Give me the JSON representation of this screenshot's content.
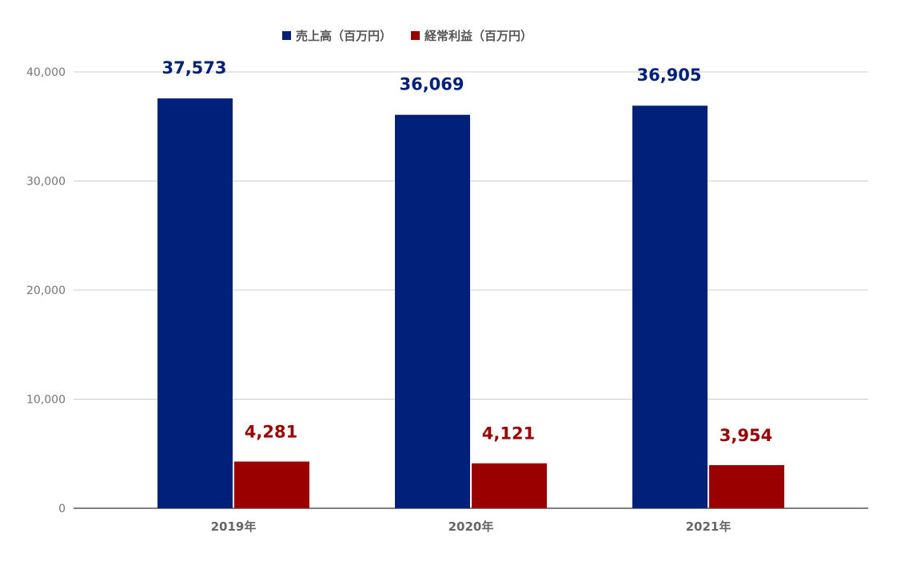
{
  "chart_data": {
    "type": "bar",
    "title": "",
    "xlabel": "",
    "ylabel": "",
    "categories": [
      "2019年",
      "2020年",
      "2021年"
    ],
    "series": [
      {
        "name": "売上高（百万円）",
        "values": [
          37573,
          36069,
          36905
        ],
        "labels": [
          "37,573",
          "36,069",
          "36,905"
        ],
        "color": "#00207a"
      },
      {
        "name": "経常利益（百万円）",
        "values": [
          4281,
          4121,
          3954
        ],
        "labels": [
          "4,281",
          "4,121",
          "3,954"
        ],
        "color": "#9a0000"
      }
    ],
    "ylim": [
      0,
      40000
    ],
    "yticks": [
      0,
      10000,
      20000,
      30000,
      40000
    ],
    "ytick_labels": [
      "0",
      "10,000",
      "20,000",
      "30,000",
      "40,000"
    ],
    "grid": true,
    "legend_position": "top"
  }
}
